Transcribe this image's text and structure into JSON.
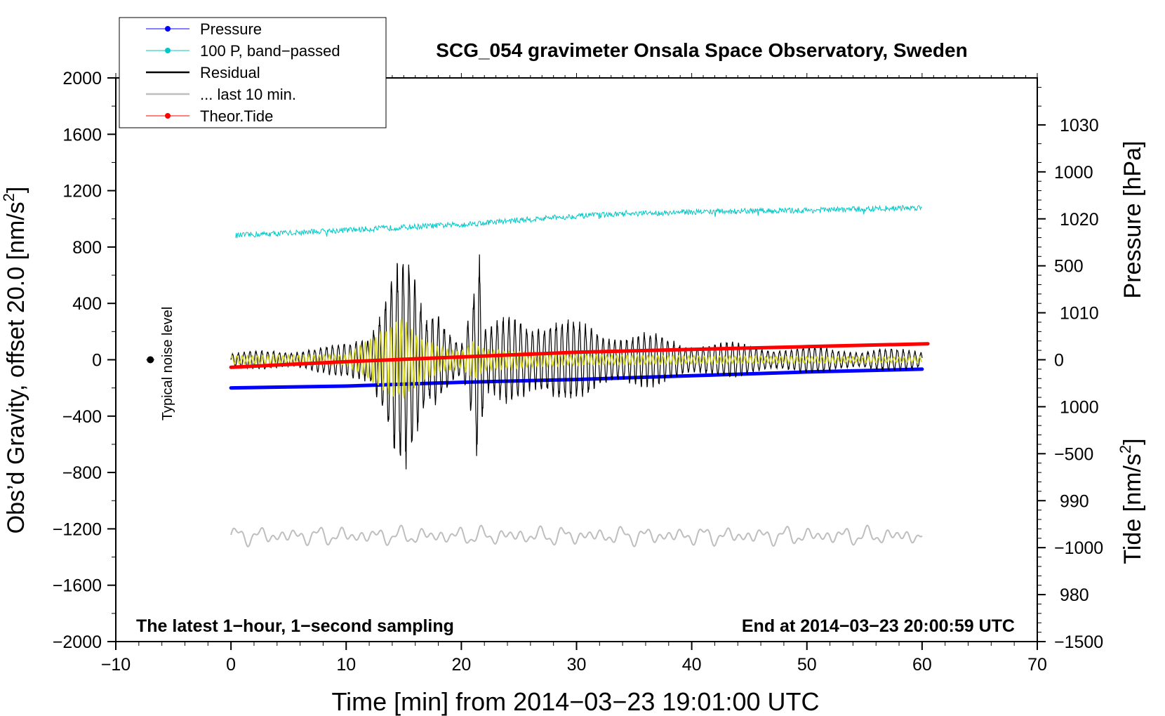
{
  "chart_data": {
    "type": "line",
    "title": "SCG_054 gravimeter Onsala Space Observatory, Sweden",
    "xlabel": "Time [min] from 2014−03−23 19:01:00 UTC",
    "ylabel_left": "Obs’d Gravity, offset 20.0 [nm/s²]",
    "ylabel_left_parts": {
      "main": "Obs’d Gravity, offset 20.0 [nm/s",
      "sup": "2",
      "end": "]"
    },
    "ylabel_right_pressure": "Pressure [hPa]",
    "ylabel_right_tide": "Tide [nm/s²]",
    "ylabel_right_tide_parts": {
      "main": "Tide [nm/s",
      "sup": "2",
      "end": "]"
    },
    "xlim": [
      -10,
      70
    ],
    "ylim_left": [
      -2000,
      2000
    ],
    "ylim_pressure": [
      975,
      1035
    ],
    "ylim_tide": [
      -1500,
      1500
    ],
    "x_ticks": [
      -10,
      0,
      10,
      20,
      30,
      40,
      50,
      60,
      70
    ],
    "x_tick_labels": [
      "−10",
      "0",
      "10",
      "20",
      "30",
      "40",
      "50",
      "60",
      "70"
    ],
    "y_left_ticks": [
      2000,
      1600,
      1200,
      800,
      400,
      0,
      -400,
      -800,
      -1200,
      -1600,
      -2000
    ],
    "y_left_tick_labels": [
      "2000",
      "1600",
      "1200",
      "800",
      "400",
      "0",
      "−400",
      "−800",
      "−1200",
      "−1600",
      "−2000"
    ],
    "y_pressure_ticks": [
      1030,
      1020,
      1010,
      1000,
      990,
      980
    ],
    "y_pressure_tick_labels": [
      "1030",
      "1020",
      "1010",
      "1000",
      "990",
      "980"
    ],
    "y_tide_ticks": [
      1000,
      500,
      0,
      -500,
      -1000,
      -1500
    ],
    "y_tide_tick_labels": [
      "1000",
      "500",
      "0",
      "−500",
      "−1000",
      "−1500"
    ],
    "legend": {
      "position": "top-left",
      "entries": [
        {
          "label": "Pressure",
          "color": "#0000ff",
          "marker": "dot"
        },
        {
          "label": "100 P, band−passed",
          "color": "#00c8c8",
          "marker": "dot"
        },
        {
          "label": "Residual",
          "color": "#000000",
          "marker": "line"
        },
        {
          "label": "... last 10 min.",
          "color": "#bebebe",
          "marker": "line"
        },
        {
          "label": "Theor.Tide",
          "color": "#ff0000",
          "marker": "dot"
        }
      ]
    },
    "annotations": {
      "bottom_left": "The latest 1−hour, 1−second sampling",
      "bottom_right": "End at 2014−03−23 20:00:59 UTC",
      "noise_label": "Typical noise level",
      "noise_point": {
        "x": -7,
        "y": 0
      }
    },
    "series": [
      {
        "name": "Pressure",
        "color": "#0000ff",
        "axis": "pressure",
        "x": [
          0,
          10,
          20,
          30,
          40,
          50,
          60
        ],
        "values": [
          1002.0,
          1002.2,
          1002.6,
          1002.9,
          1003.3,
          1003.7,
          1004.0
        ]
      },
      {
        "name": "100 P, band−passed",
        "color": "#00c8c8",
        "axis": "left",
        "x": [
          0,
          10,
          20,
          30,
          40,
          50,
          60
        ],
        "values": [
          880,
          920,
          960,
          1020,
          1050,
          1060,
          1080
        ]
      },
      {
        "name": "Theor.Tide",
        "color": "#ff0000",
        "axis": "tide",
        "x": [
          0,
          10,
          20,
          30,
          40,
          50,
          60.5
        ],
        "values": [
          -40,
          -10,
          15,
          40,
          55,
          70,
          85
        ]
      },
      {
        "name": "Residual",
        "color": "#000000",
        "axis": "left",
        "x": [
          0,
          5,
          8,
          10,
          12,
          13,
          14,
          15,
          16,
          17,
          18,
          19,
          20,
          21,
          21.5,
          22,
          23,
          25,
          27,
          30,
          33,
          36,
          40,
          45,
          50,
          55,
          60
        ],
        "envelope": [
          50,
          80,
          90,
          120,
          250,
          500,
          700,
          750,
          550,
          300,
          420,
          300,
          150,
          500,
          850,
          200,
          250,
          400,
          320,
          260,
          240,
          180,
          140,
          110,
          90,
          80,
          70
        ]
      },
      {
        "name": "Yellow overlay",
        "color": "#d2d21e",
        "axis": "left",
        "x": [
          0,
          10,
          12,
          14,
          15,
          16,
          18,
          20,
          21,
          22,
          25,
          30,
          40,
          50,
          60
        ],
        "envelope": [
          30,
          40,
          150,
          280,
          300,
          200,
          100,
          60,
          150,
          80,
          60,
          40,
          30,
          25,
          20
        ]
      },
      {
        "name": "... last 10 min.",
        "color": "#bebebe",
        "axis": "left",
        "x": [
          0,
          60
        ],
        "baseline": -1250,
        "envelope": [
          70,
          70
        ]
      }
    ]
  }
}
